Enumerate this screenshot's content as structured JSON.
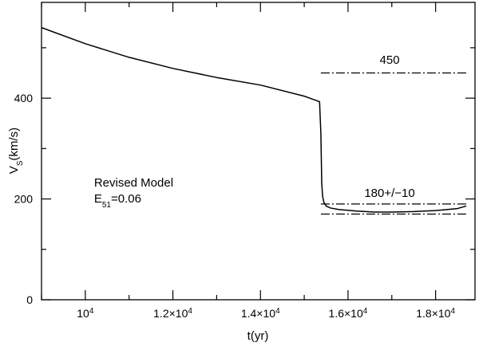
{
  "chart_data": {
    "type": "line",
    "xlabel": "t(yr)",
    "ylabel": {
      "base": "V",
      "sub": "S",
      "rest": "(km/s)"
    },
    "xlim": [
      9000,
      18900
    ],
    "ylim": [
      0,
      590
    ],
    "x_ticks_major": [
      {
        "value": 10000,
        "mantissa": "",
        "exp": "4"
      },
      {
        "value": 12000,
        "mantissa": "1.2×",
        "exp": "4"
      },
      {
        "value": 14000,
        "mantissa": "1.4×",
        "exp": "4"
      },
      {
        "value": 16000,
        "mantissa": "1.6×",
        "exp": "4"
      },
      {
        "value": 18000,
        "mantissa": "1.8×",
        "exp": "4"
      }
    ],
    "x_ticks_minor": [
      9000,
      11000,
      13000,
      15000,
      17000
    ],
    "y_ticks_major": [
      {
        "value": 0,
        "label": "0"
      },
      {
        "value": 200,
        "label": "200"
      },
      {
        "value": 400,
        "label": "400"
      }
    ],
    "y_ticks_minor": [
      100,
      300,
      500
    ],
    "series": [
      {
        "style": "solid",
        "x": [
          9000,
          10000,
          11000,
          12000,
          13000,
          14000,
          15000,
          15350,
          15380,
          15400,
          15420,
          15450,
          15500,
          15600,
          15800,
          16200,
          16600,
          17000,
          17500,
          18000,
          18500,
          18700
        ],
        "y": [
          540,
          508,
          481,
          459,
          441,
          426,
          404,
          393,
          330,
          230,
          205,
          193,
          186,
          182,
          179,
          176,
          174,
          174,
          175,
          177,
          181,
          186
        ]
      }
    ],
    "reference_lines": [
      {
        "y": 450,
        "x_start": 15380,
        "x_end": 18700,
        "style": "dash-dot"
      },
      {
        "y": 190,
        "x_start": 15380,
        "x_end": 18700,
        "style": "dash-dot"
      },
      {
        "y": 170,
        "x_start": 15380,
        "x_end": 18700,
        "style": "dash-dot"
      }
    ],
    "annotations": [
      {
        "text": "450",
        "x": 16950,
        "y": 468
      },
      {
        "text": "180+/−10",
        "x": 16950,
        "y": 204
      }
    ],
    "model_label": {
      "line1": "Revised Model",
      "line2": {
        "base": "E",
        "sub": "51",
        "rest": "=0.06"
      },
      "x": 10200,
      "y": 225
    }
  }
}
